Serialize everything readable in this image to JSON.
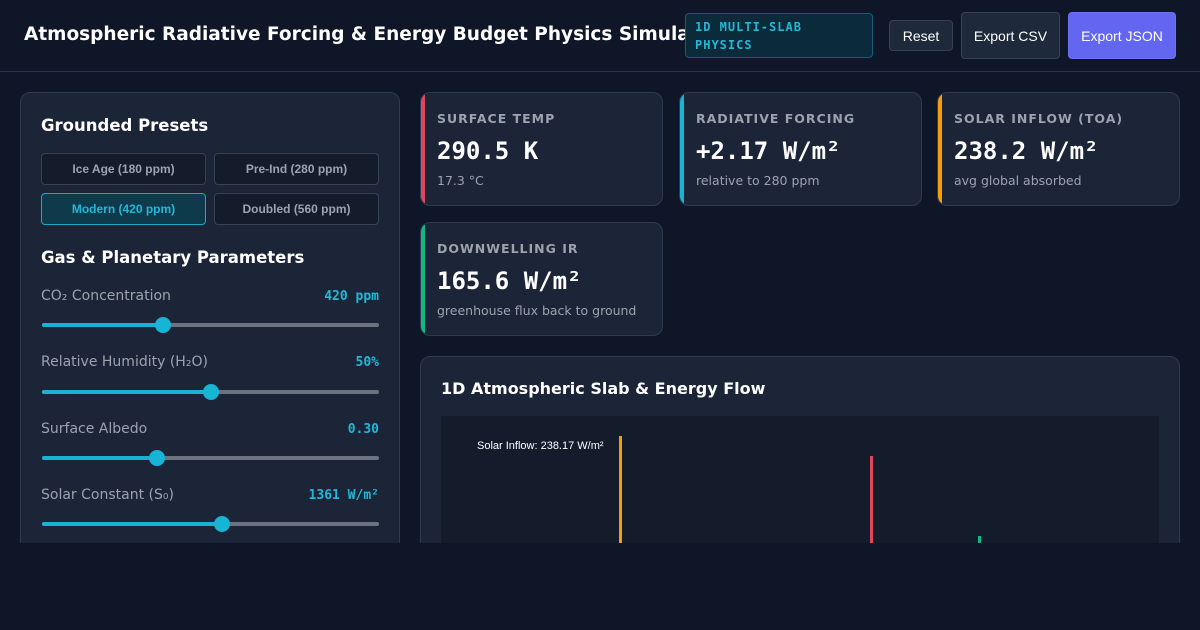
{
  "header": {
    "title": "Atmospheric Radiative Forcing & Energy Budget Physics Simulator",
    "badge": "1D MULTI-SLAB PHYSICS",
    "reset_label": "Reset",
    "export_csv_label": "Export CSV",
    "export_json_label": "Export JSON"
  },
  "presets": {
    "title": "Grounded Presets",
    "items": [
      {
        "label": "Ice Age (180 ppm)",
        "active": false
      },
      {
        "label": "Pre-Ind (280 ppm)",
        "active": false
      },
      {
        "label": "Modern (420 ppm)",
        "active": true
      },
      {
        "label": "Doubled (560 ppm)",
        "active": false
      }
    ]
  },
  "params": {
    "title": "Gas & Planetary Parameters",
    "items": [
      {
        "label": "CO₂ Concentration",
        "value": "420 ppm",
        "fraction": 0.36
      },
      {
        "label": "Relative Humidity (H₂O)",
        "value": "50%",
        "fraction": 0.5
      },
      {
        "label": "Surface Albedo",
        "value": "0.30",
        "fraction": 0.34
      },
      {
        "label": "Solar Constant (S₀)",
        "value": "1361 W/m²",
        "fraction": 0.535
      }
    ]
  },
  "cards": [
    {
      "label": "SURFACE TEMP",
      "value": "290.5 K",
      "sub": "17.3 °C",
      "color": "#e0475f"
    },
    {
      "label": "RADIATIVE FORCING",
      "value": "+2.17 W/m²",
      "sub": "relative to 280 ppm",
      "color": "#17b4d6"
    },
    {
      "label": "SOLAR INFLOW (TOA)",
      "value": "238.2 W/m²",
      "sub": "avg global absorbed",
      "color": "#f59e0b"
    },
    {
      "label": "DOWNWELLING IR",
      "value": "165.6 W/m²",
      "sub": "greenhouse flux back to ground",
      "color": "#10b981"
    }
  ],
  "chart": {
    "title": "1D Atmospheric Slab & Energy Flow",
    "solar_label": "Solar Inflow: 238.17 W/m²",
    "colors": {
      "solar": "#f59e0b",
      "ir": "#e0475f",
      "down": "#10b981"
    }
  }
}
